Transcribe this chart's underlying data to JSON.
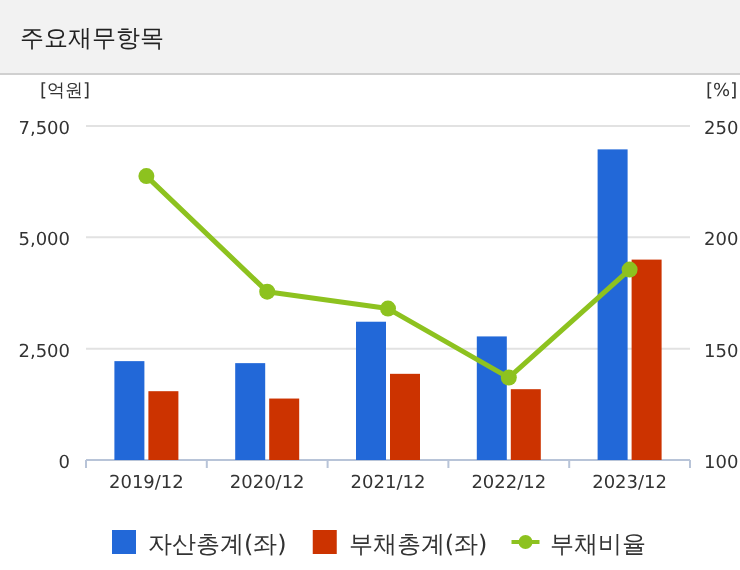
{
  "chart_data": {
    "type": "bar",
    "title": "주요재무항목",
    "ylabel": "[억원]",
    "y2label": "[%]",
    "categories": [
      "2019/12",
      "2020/12",
      "2021/12",
      "2022/12",
      "2023/12"
    ],
    "series": [
      {
        "name": "자산총계(좌)",
        "color": "#2268d8",
        "values": [
          2220,
          2175,
          3105,
          2775,
          6975
        ]
      },
      {
        "name": "부채총계(좌)",
        "color": "#cc3300",
        "values": [
          1545,
          1380,
          1935,
          1590,
          4500
        ]
      },
      {
        "name": "부채비율",
        "type": "line",
        "axis": "y2",
        "color": "#8dc21f",
        "marker": "circle",
        "values": [
          227.5,
          175.6,
          168,
          137,
          185.5
        ]
      }
    ],
    "ylim": [
      0,
      7500
    ],
    "yticks": [
      0,
      {
        "value": 2500,
        "label": "2,500"
      },
      {
        "value": 5000,
        "label": "5,000"
      },
      {
        "value": 7500,
        "label": "7,500"
      }
    ],
    "y2lim": [
      100,
      250
    ],
    "y2ticks": [
      100,
      150,
      200,
      250
    ],
    "grid": "y",
    "legend": "bottom"
  }
}
